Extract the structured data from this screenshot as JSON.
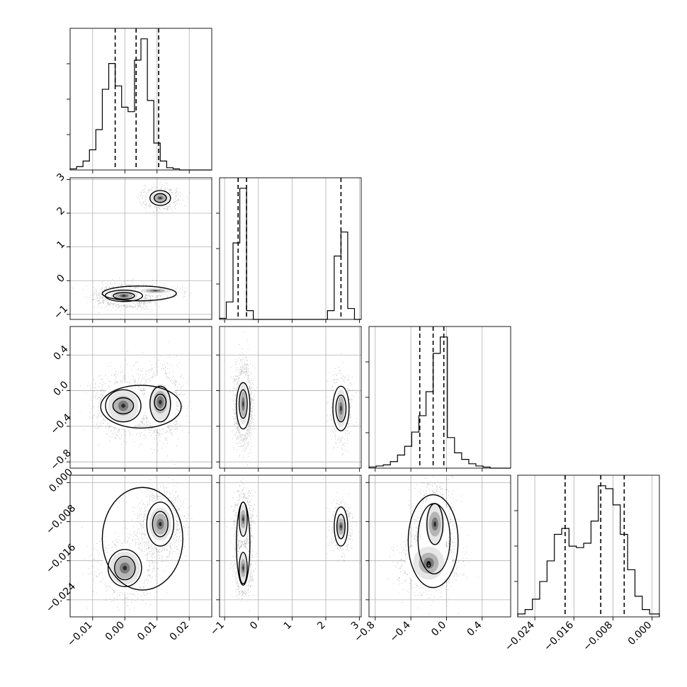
{
  "chart_data": {
    "type": "corner",
    "grid": true,
    "parameters": [
      {
        "range": [
          -0.017,
          0.027
        ],
        "ticks": [
          -0.01,
          0.0,
          0.01,
          0.02
        ],
        "tick_labels": [
          "−0.01",
          "0.00",
          "0.01",
          "0.02"
        ],
        "quantiles": [
          -0.003,
          0.0035,
          0.0105
        ],
        "hist": {
          "edges": [
            -0.017,
            -0.015,
            -0.013,
            -0.011,
            -0.009,
            -0.007,
            -0.005,
            -0.003,
            -0.001,
            0.001,
            0.003,
            0.005,
            0.007,
            0.009,
            0.011,
            0.013,
            0.015,
            0.017,
            0.019,
            0.021,
            0.023,
            0.025,
            0.027
          ],
          "counts": [
            1,
            3,
            8,
            18,
            36,
            72,
            95,
            75,
            56,
            52,
            98,
            117,
            62,
            24,
            8,
            2,
            1,
            0,
            0,
            0,
            0,
            0
          ]
        }
      },
      {
        "range": [
          -1.15,
          3.05
        ],
        "ticks": [
          -1,
          0,
          1,
          2,
          3
        ],
        "tick_labels": [
          "−1",
          "0",
          "1",
          "2",
          "3"
        ],
        "quantiles": [
          -0.6,
          -0.35,
          2.45
        ],
        "hist": {
          "edges": [
            -1.15,
            -0.95,
            -0.75,
            -0.55,
            -0.35,
            -0.15,
            0.05,
            0.25,
            0.45,
            0.65,
            0.85,
            1.05,
            1.25,
            1.45,
            1.65,
            1.85,
            2.05,
            2.25,
            2.45,
            2.65,
            2.85,
            3.05
          ],
          "counts": [
            1,
            16,
            70,
            120,
            8,
            0,
            0,
            0,
            0,
            0,
            0,
            0,
            0,
            0,
            0,
            0,
            8,
            58,
            80,
            10,
            0
          ]
        }
      },
      {
        "range": [
          -0.87,
          0.72
        ],
        "ticks": [
          -0.8,
          -0.4,
          0.0,
          0.4
        ],
        "tick_labels": [
          "−0.8",
          "−0.4",
          "0.0",
          "0.4"
        ],
        "quantiles": [
          -0.3,
          -0.15,
          -0.03
        ],
        "hist": {
          "edges": [
            -0.87,
            -0.79,
            -0.71,
            -0.63,
            -0.55,
            -0.47,
            -0.39,
            -0.31,
            -0.23,
            -0.15,
            -0.07,
            0.01,
            0.09,
            0.17,
            0.25,
            0.33,
            0.41,
            0.49,
            0.57,
            0.65,
            0.72
          ],
          "counts": [
            1,
            2,
            3,
            6,
            12,
            20,
            33,
            48,
            70,
            105,
            120,
            28,
            14,
            8,
            4,
            2,
            1,
            0,
            0,
            0
          ]
        }
      },
      {
        "range": [
          -0.0275,
          0.0015
        ],
        "ticks": [
          -0.024,
          -0.016,
          -0.008,
          0.0
        ],
        "tick_labels": [
          "−0.024",
          "−0.016",
          "−0.008",
          "0.000"
        ],
        "quantiles": [
          -0.0178,
          -0.0105,
          -0.0057
        ],
        "hist": {
          "edges": [
            -0.0275,
            -0.026,
            -0.0245,
            -0.023,
            -0.0215,
            -0.02,
            -0.0185,
            -0.017,
            -0.0155,
            -0.014,
            -0.0125,
            -0.011,
            -0.0095,
            -0.008,
            -0.0065,
            -0.005,
            -0.0035,
            -0.002,
            -0.0005,
            0.0015
          ],
          "counts": [
            2,
            5,
            12,
            24,
            38,
            56,
            60,
            48,
            47,
            50,
            65,
            89,
            87,
            76,
            56,
            32,
            14,
            5,
            2
          ]
        }
      }
    ],
    "pairs": [
      {
        "x": 0,
        "y": 1,
        "modes": [
          {
            "cx": -0.0003,
            "cy": -0.45,
            "sx": 0.0032,
            "sy": 0.13,
            "w": 0.63
          },
          {
            "cx": 0.0095,
            "cy": -0.3,
            "sx": 0.0035,
            "sy": 0.06,
            "w": 0.12
          },
          {
            "cx": 0.011,
            "cy": 2.45,
            "sx": 0.0022,
            "sy": 0.13,
            "w": 0.25
          }
        ],
        "contours": [
          {
            "cx": -0.0003,
            "cy": -0.45,
            "rx": 0.0058,
            "ry": 0.17,
            "rot": 0
          },
          {
            "cx": -0.0003,
            "cy": -0.45,
            "rx": 0.0033,
            "ry": 0.1,
            "rot": 0
          },
          {
            "cx": 0.0045,
            "cy": -0.38,
            "rx": 0.0115,
            "ry": 0.22,
            "rot": 0
          },
          {
            "cx": 0.011,
            "cy": 2.45,
            "rx": 0.0032,
            "ry": 0.22,
            "rot": 0
          },
          {
            "cx": 0.011,
            "cy": 2.45,
            "rx": 0.0019,
            "ry": 0.13,
            "rot": 0
          }
        ]
      },
      {
        "x": 0,
        "y": 2,
        "modes": [
          {
            "cx": -0.0005,
            "cy": -0.17,
            "sx": 0.0035,
            "sy": 0.13,
            "w": 0.5
          },
          {
            "cx": 0.011,
            "cy": -0.13,
            "sx": 0.0025,
            "sy": 0.15,
            "w": 0.5
          }
        ],
        "contours": [
          {
            "cx": 0.005,
            "cy": -0.18,
            "rx": 0.0125,
            "ry": 0.24,
            "rot": 0
          },
          {
            "cx": -0.0005,
            "cy": -0.17,
            "rx": 0.0055,
            "ry": 0.18,
            "rot": 0
          },
          {
            "cx": 0.011,
            "cy": -0.15,
            "rx": 0.0032,
            "ry": 0.2,
            "rot": 0
          },
          {
            "cx": -0.0005,
            "cy": -0.17,
            "rx": 0.0032,
            "ry": 0.09,
            "rot": 0
          },
          {
            "cx": 0.011,
            "cy": -0.13,
            "rx": 0.0018,
            "ry": 0.09,
            "rot": 0
          }
        ]
      },
      {
        "x": 0,
        "y": 3,
        "modes": [
          {
            "cx": 0.0,
            "cy": -0.0175,
            "sx": 0.0035,
            "sy": 0.0025,
            "w": 0.4
          },
          {
            "cx": 0.011,
            "cy": -0.0085,
            "sx": 0.0025,
            "sy": 0.0025,
            "w": 0.6
          }
        ],
        "contours": [
          {
            "cx": 0.0055,
            "cy": -0.0115,
            "rx": 0.0125,
            "ry": 0.0105,
            "rot": 0
          },
          {
            "cx": 0.0,
            "cy": -0.0175,
            "rx": 0.0052,
            "ry": 0.0038,
            "rot": 0
          },
          {
            "cx": 0.011,
            "cy": -0.0085,
            "rx": 0.0042,
            "ry": 0.0045,
            "rot": 0
          },
          {
            "cx": 0.0,
            "cy": -0.0175,
            "rx": 0.0032,
            "ry": 0.0024,
            "rot": 0
          },
          {
            "cx": 0.011,
            "cy": -0.0085,
            "rx": 0.0024,
            "ry": 0.0026,
            "rot": 0
          }
        ]
      },
      {
        "x": 1,
        "y": 2,
        "modes": [
          {
            "cx": -0.45,
            "cy": -0.15,
            "sx": 0.1,
            "sy": 0.17,
            "w": 0.75
          },
          {
            "cx": 2.45,
            "cy": -0.2,
            "sx": 0.12,
            "sy": 0.16,
            "w": 0.25
          }
        ],
        "contours": [
          {
            "cx": -0.45,
            "cy": -0.17,
            "rx": 0.2,
            "ry": 0.26,
            "rot": 0
          },
          {
            "cx": -0.45,
            "cy": -0.15,
            "rx": 0.12,
            "ry": 0.16,
            "rot": 0
          },
          {
            "cx": 2.45,
            "cy": -0.2,
            "rx": 0.24,
            "ry": 0.25,
            "rot": 0
          },
          {
            "cx": 2.45,
            "cy": -0.2,
            "rx": 0.15,
            "ry": 0.15,
            "rot": 0
          }
        ]
      },
      {
        "x": 1,
        "y": 3,
        "modes": [
          {
            "cx": -0.45,
            "cy": -0.0075,
            "sx": 0.1,
            "sy": 0.0022,
            "w": 0.4
          },
          {
            "cx": -0.45,
            "cy": -0.0175,
            "sx": 0.1,
            "sy": 0.0022,
            "w": 0.35
          },
          {
            "cx": 2.45,
            "cy": -0.009,
            "sx": 0.12,
            "sy": 0.002,
            "w": 0.25
          }
        ],
        "contours": [
          {
            "cx": -0.45,
            "cy": -0.0125,
            "rx": 0.2,
            "ry": 0.0085,
            "rot": 0
          },
          {
            "cx": -0.45,
            "cy": -0.0075,
            "rx": 0.12,
            "ry": 0.0035,
            "rot": 0
          },
          {
            "cx": -0.45,
            "cy": -0.0175,
            "rx": 0.12,
            "ry": 0.0032,
            "rot": 0
          },
          {
            "cx": 2.45,
            "cy": -0.009,
            "rx": 0.2,
            "ry": 0.004,
            "rot": 0
          },
          {
            "cx": 2.45,
            "cy": -0.009,
            "rx": 0.12,
            "ry": 0.0025,
            "rot": 0
          }
        ]
      },
      {
        "x": 2,
        "y": 3,
        "modes": [
          {
            "cx": -0.13,
            "cy": -0.0085,
            "sx": 0.08,
            "sy": 0.003,
            "w": 0.6
          },
          {
            "cx": -0.2,
            "cy": -0.0165,
            "sx": 0.13,
            "sy": 0.0025,
            "w": 0.4
          }
        ],
        "contours": [
          {
            "cx": -0.15,
            "cy": -0.012,
            "rx": 0.28,
            "ry": 0.0095,
            "rot": 0
          },
          {
            "cx": -0.14,
            "cy": -0.0115,
            "rx": 0.18,
            "ry": 0.0072,
            "rot": 0
          },
          {
            "cx": -0.13,
            "cy": -0.0085,
            "rx": 0.09,
            "ry": 0.0042,
            "rot": 0
          },
          {
            "cx": -0.2,
            "cy": -0.0168,
            "rx": 0.02,
            "ry": 0.0005,
            "rot": 0
          }
        ]
      }
    ]
  }
}
